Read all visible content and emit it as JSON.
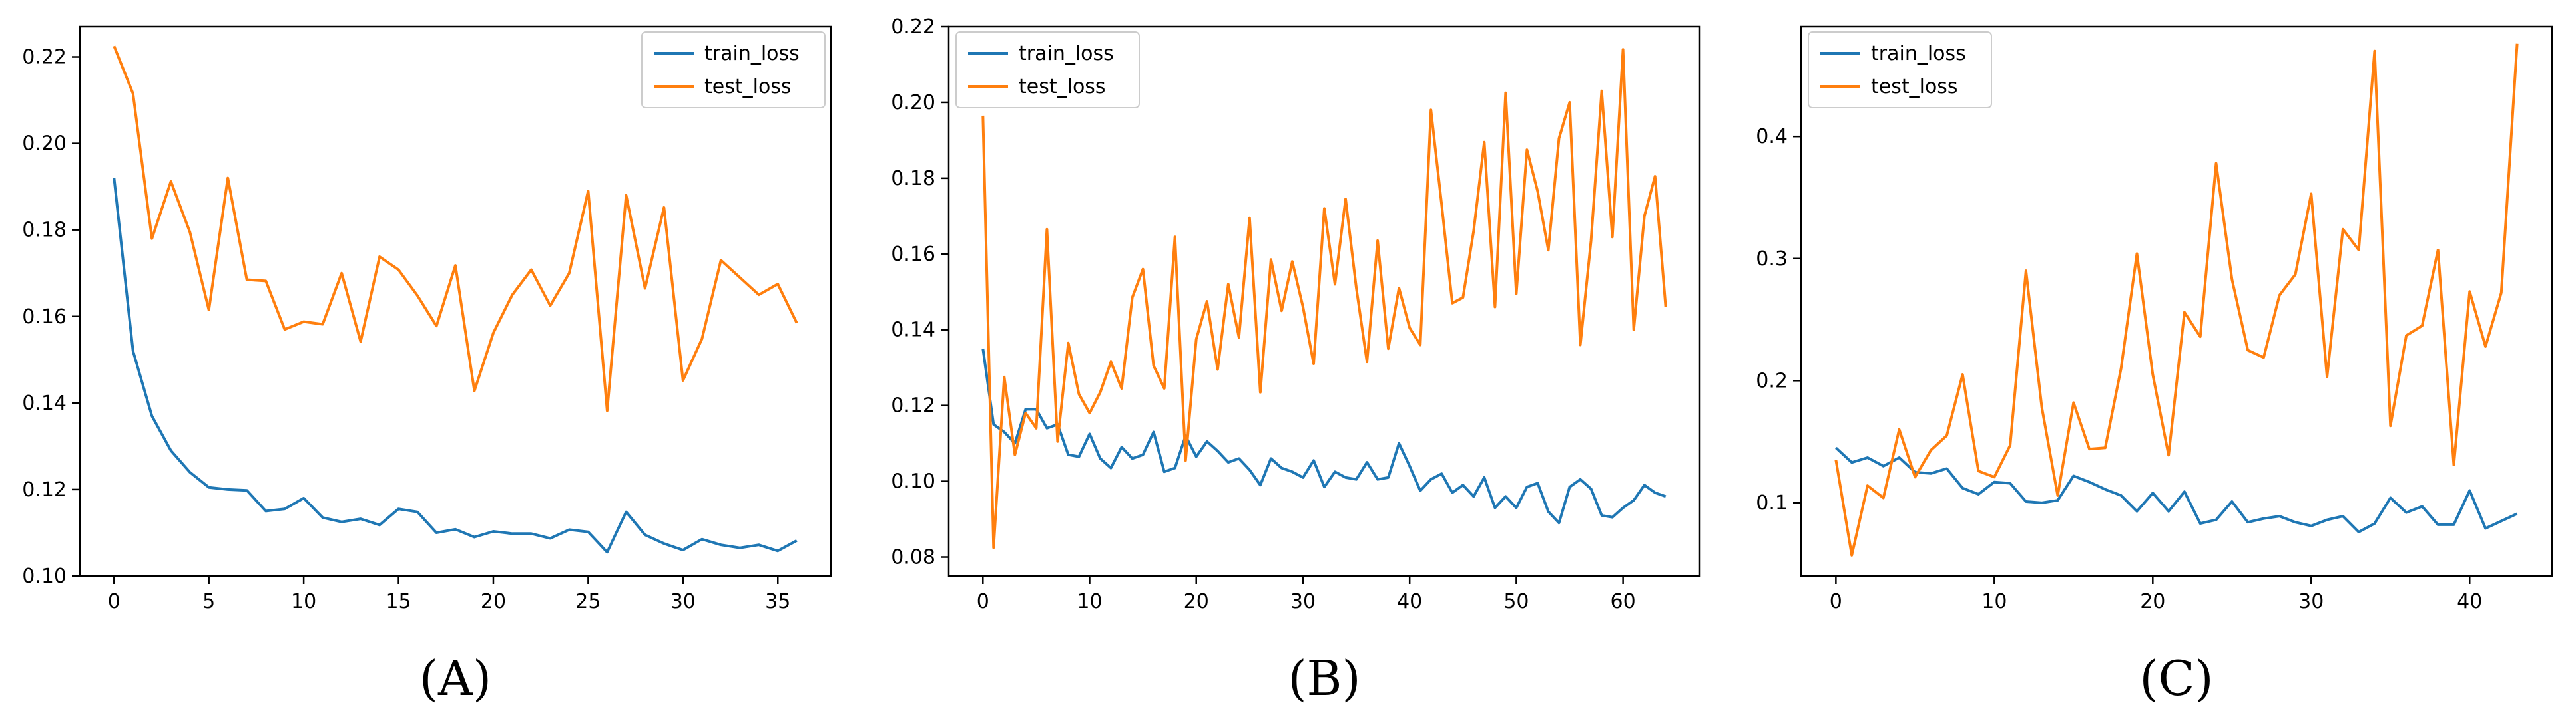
{
  "colors": {
    "train": "#1f77b4",
    "test": "#ff7f0e"
  },
  "chart_data": [
    {
      "type": "line",
      "panel_label": "(A)",
      "xlim": [
        -1.8,
        37.8
      ],
      "ylim": [
        0.1,
        0.227
      ],
      "xticks": [
        0,
        5,
        10,
        15,
        20,
        25,
        30,
        35
      ],
      "yticks": [
        0.1,
        0.12,
        0.14,
        0.16,
        0.18,
        0.2,
        0.22
      ],
      "ytick_labels": [
        "0.10",
        "0.12",
        "0.14",
        "0.16",
        "0.18",
        "0.20",
        "0.22"
      ],
      "legend_position": "top-right",
      "series": [
        {
          "name": "train_loss",
          "color": "#1f77b4",
          "x": [
            0,
            1,
            2,
            3,
            4,
            5,
            6,
            7,
            8,
            9,
            10,
            11,
            12,
            13,
            14,
            15,
            16,
            17,
            18,
            19,
            20,
            21,
            22,
            23,
            24,
            25,
            26,
            27,
            28,
            29,
            30,
            31,
            32,
            33,
            34,
            35,
            36
          ],
          "y": [
            0.192,
            0.152,
            0.137,
            0.129,
            0.124,
            0.1205,
            0.12,
            0.1198,
            0.115,
            0.1155,
            0.118,
            0.1135,
            0.1125,
            0.1132,
            0.1118,
            0.1155,
            0.1148,
            0.11,
            0.1108,
            0.109,
            0.1103,
            0.1098,
            0.1098,
            0.1087,
            0.1107,
            0.1102,
            0.1055,
            0.1148,
            0.1095,
            0.1075,
            0.106,
            0.1085,
            0.1072,
            0.1065,
            0.1072,
            0.1058,
            0.1082
          ]
        },
        {
          "name": "test_loss",
          "color": "#ff7f0e",
          "x": [
            0,
            1,
            2,
            3,
            4,
            5,
            6,
            7,
            8,
            9,
            10,
            11,
            12,
            13,
            14,
            15,
            16,
            17,
            18,
            19,
            20,
            21,
            22,
            23,
            24,
            25,
            26,
            27,
            28,
            29,
            30,
            31,
            32,
            33,
            34,
            35,
            36
          ],
          "y": [
            0.2225,
            0.2115,
            0.178,
            0.1912,
            0.1795,
            0.1615,
            0.192,
            0.1685,
            0.1682,
            0.157,
            0.1588,
            0.1582,
            0.17,
            0.1542,
            0.1738,
            0.1708,
            0.1648,
            0.1578,
            0.1718,
            0.1428,
            0.1562,
            0.165,
            0.1708,
            0.1625,
            0.17,
            0.189,
            0.1382,
            0.188,
            0.1665,
            0.1852,
            0.1452,
            0.1548,
            0.173,
            0.169,
            0.165,
            0.1675,
            0.1585
          ]
        }
      ]
    },
    {
      "type": "line",
      "panel_label": "(B)",
      "xlim": [
        -3.2,
        67.2
      ],
      "ylim": [
        0.075,
        0.22
      ],
      "xticks": [
        0,
        10,
        20,
        30,
        40,
        50,
        60
      ],
      "yticks": [
        0.08,
        0.1,
        0.12,
        0.14,
        0.16,
        0.18,
        0.2,
        0.22
      ],
      "ytick_labels": [
        "0.08",
        "0.10",
        "0.12",
        "0.14",
        "0.16",
        "0.18",
        "0.20",
        "0.22"
      ],
      "legend_position": "top-left",
      "series": [
        {
          "name": "train_loss",
          "color": "#1f77b4",
          "x": [
            0,
            1,
            2,
            3,
            4,
            5,
            6,
            7,
            8,
            9,
            10,
            11,
            12,
            13,
            14,
            15,
            16,
            17,
            18,
            19,
            20,
            21,
            22,
            23,
            24,
            25,
            26,
            27,
            28,
            29,
            30,
            31,
            32,
            33,
            34,
            35,
            36,
            37,
            38,
            39,
            40,
            41,
            42,
            43,
            44,
            45,
            46,
            47,
            48,
            49,
            50,
            51,
            52,
            53,
            54,
            55,
            56,
            57,
            58,
            59,
            60,
            61,
            62,
            63,
            64
          ],
          "y": [
            0.135,
            0.115,
            0.113,
            0.11,
            0.119,
            0.119,
            0.114,
            0.115,
            0.107,
            0.1065,
            0.1125,
            0.106,
            0.1035,
            0.109,
            0.106,
            0.107,
            0.113,
            0.1025,
            0.1035,
            0.112,
            0.1065,
            0.1105,
            0.108,
            0.105,
            0.106,
            0.103,
            0.099,
            0.106,
            0.1035,
            0.1025,
            0.101,
            0.1055,
            0.0985,
            0.1025,
            0.101,
            0.1005,
            0.105,
            0.1005,
            0.101,
            0.11,
            0.104,
            0.0975,
            0.1005,
            0.102,
            0.097,
            0.099,
            0.096,
            0.101,
            0.093,
            0.096,
            0.093,
            0.0985,
            0.0995,
            0.092,
            0.089,
            0.0985,
            0.1005,
            0.098,
            0.091,
            0.0905,
            0.093,
            0.095,
            0.099,
            0.097,
            0.096
          ]
        },
        {
          "name": "test_loss",
          "color": "#ff7f0e",
          "x": [
            0,
            1,
            2,
            3,
            4,
            5,
            6,
            7,
            8,
            9,
            10,
            11,
            12,
            13,
            14,
            15,
            16,
            17,
            18,
            19,
            20,
            21,
            22,
            23,
            24,
            25,
            26,
            27,
            28,
            29,
            30,
            31,
            32,
            33,
            34,
            35,
            36,
            37,
            38,
            39,
            40,
            41,
            42,
            43,
            44,
            45,
            46,
            47,
            48,
            49,
            50,
            51,
            52,
            53,
            54,
            55,
            56,
            57,
            58,
            59,
            60,
            61,
            62,
            63,
            64
          ],
          "y": [
            0.1965,
            0.0825,
            0.1275,
            0.107,
            0.118,
            0.114,
            0.1665,
            0.1105,
            0.1365,
            0.123,
            0.118,
            0.1235,
            0.1315,
            0.1245,
            0.1485,
            0.156,
            0.1305,
            0.1245,
            0.1645,
            0.1055,
            0.1375,
            0.1475,
            0.1295,
            0.152,
            0.138,
            0.1695,
            0.1235,
            0.1585,
            0.145,
            0.158,
            0.146,
            0.131,
            0.172,
            0.152,
            0.1745,
            0.151,
            0.1315,
            0.1635,
            0.135,
            0.151,
            0.1405,
            0.136,
            0.198,
            0.173,
            0.147,
            0.1485,
            0.166,
            0.1895,
            0.146,
            0.2025,
            0.1495,
            0.1875,
            0.1765,
            0.161,
            0.1905,
            0.2,
            0.136,
            0.1635,
            0.203,
            0.1645,
            0.214,
            0.14,
            0.17,
            0.1805,
            0.146
          ]
        }
      ]
    },
    {
      "type": "line",
      "panel_label": "(C)",
      "xlim": [
        -2.2,
        45.2
      ],
      "ylim": [
        0.04,
        0.49
      ],
      "xticks": [
        0,
        10,
        20,
        30,
        40
      ],
      "yticks": [
        0.1,
        0.2,
        0.3,
        0.4
      ],
      "ytick_labels": [
        "0.1",
        "0.2",
        "0.3",
        "0.4"
      ],
      "legend_position": "top-left",
      "series": [
        {
          "name": "train_loss",
          "color": "#1f77b4",
          "x": [
            0,
            1,
            2,
            3,
            4,
            5,
            6,
            7,
            8,
            9,
            10,
            11,
            12,
            13,
            14,
            15,
            16,
            17,
            18,
            19,
            20,
            21,
            22,
            23,
            24,
            25,
            26,
            27,
            28,
            29,
            30,
            31,
            32,
            33,
            34,
            35,
            36,
            37,
            38,
            39,
            40,
            41,
            42,
            43
          ],
          "y": [
            0.145,
            0.133,
            0.137,
            0.13,
            0.137,
            0.125,
            0.124,
            0.128,
            0.112,
            0.107,
            0.117,
            0.116,
            0.101,
            0.1,
            0.102,
            0.122,
            0.117,
            0.111,
            0.106,
            0.093,
            0.108,
            0.093,
            0.109,
            0.083,
            0.086,
            0.101,
            0.084,
            0.087,
            0.089,
            0.084,
            0.081,
            0.086,
            0.089,
            0.076,
            0.083,
            0.104,
            0.092,
            0.097,
            0.082,
            0.082,
            0.11,
            0.079,
            0.085,
            0.091
          ]
        },
        {
          "name": "test_loss",
          "color": "#ff7f0e",
          "x": [
            0,
            1,
            2,
            3,
            4,
            5,
            6,
            7,
            8,
            9,
            10,
            11,
            12,
            13,
            14,
            15,
            16,
            17,
            18,
            19,
            20,
            21,
            22,
            23,
            24,
            25,
            26,
            27,
            28,
            29,
            30,
            31,
            32,
            33,
            34,
            35,
            36,
            37,
            38,
            39,
            40,
            41,
            42,
            43
          ],
          "y": [
            0.135,
            0.057,
            0.114,
            0.104,
            0.16,
            0.121,
            0.143,
            0.155,
            0.205,
            0.126,
            0.121,
            0.147,
            0.29,
            0.178,
            0.106,
            0.182,
            0.144,
            0.145,
            0.21,
            0.304,
            0.205,
            0.139,
            0.256,
            0.236,
            0.378,
            0.283,
            0.225,
            0.219,
            0.27,
            0.287,
            0.353,
            0.203,
            0.324,
            0.307,
            0.47,
            0.163,
            0.237,
            0.245,
            0.307,
            0.131,
            0.273,
            0.228,
            0.272,
            0.476
          ]
        }
      ]
    }
  ]
}
